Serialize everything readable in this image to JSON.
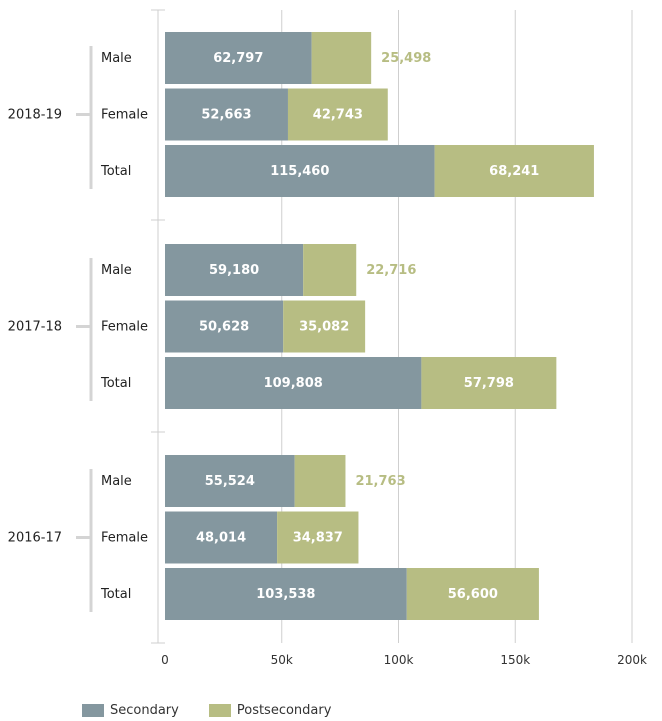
{
  "chart_data": {
    "type": "bar",
    "orientation": "horizontal",
    "stacked": true,
    "groups": [
      {
        "label": "2018-19",
        "rows": [
          {
            "label": "Male",
            "secondary": 62797,
            "postsecondary": 25498,
            "secondary_label": "62,797",
            "postsecondary_label": "25,498"
          },
          {
            "label": "Female",
            "secondary": 52663,
            "postsecondary": 42743,
            "secondary_label": "52,663",
            "postsecondary_label": "42,743"
          },
          {
            "label": "Total",
            "secondary": 115460,
            "postsecondary": 68241,
            "secondary_label": "115,460",
            "postsecondary_label": "68,241"
          }
        ]
      },
      {
        "label": "2017-18",
        "rows": [
          {
            "label": "Male",
            "secondary": 59180,
            "postsecondary": 22716,
            "secondary_label": "59,180",
            "postsecondary_label": "22,716"
          },
          {
            "label": "Female",
            "secondary": 50628,
            "postsecondary": 35082,
            "secondary_label": "50,628",
            "postsecondary_label": "35,082"
          },
          {
            "label": "Total",
            "secondary": 109808,
            "postsecondary": 57798,
            "secondary_label": "109,808",
            "postsecondary_label": "57,798"
          }
        ]
      },
      {
        "label": "2016-17",
        "rows": [
          {
            "label": "Male",
            "secondary": 55524,
            "postsecondary": 21763,
            "secondary_label": "55,524",
            "postsecondary_label": "21,763"
          },
          {
            "label": "Female",
            "secondary": 48014,
            "postsecondary": 34837,
            "secondary_label": "48,014",
            "postsecondary_label": "34,837"
          },
          {
            "label": "Total",
            "secondary": 103538,
            "postsecondary": 56600,
            "secondary_label": "103,538",
            "postsecondary_label": "56,600"
          }
        ]
      }
    ],
    "series": [
      {
        "key": "secondary",
        "name": "Secondary",
        "color": "#84979f"
      },
      {
        "key": "postsecondary",
        "name": "Postsecondary",
        "color": "#b7bd83"
      }
    ],
    "xlim": [
      0,
      200000
    ],
    "x_ticks": [
      0,
      50000,
      100000,
      150000,
      200000
    ],
    "x_tick_labels": [
      "0",
      "50k",
      "100k",
      "150k",
      "200k"
    ],
    "grid": true,
    "legend_position": "bottom-left"
  }
}
